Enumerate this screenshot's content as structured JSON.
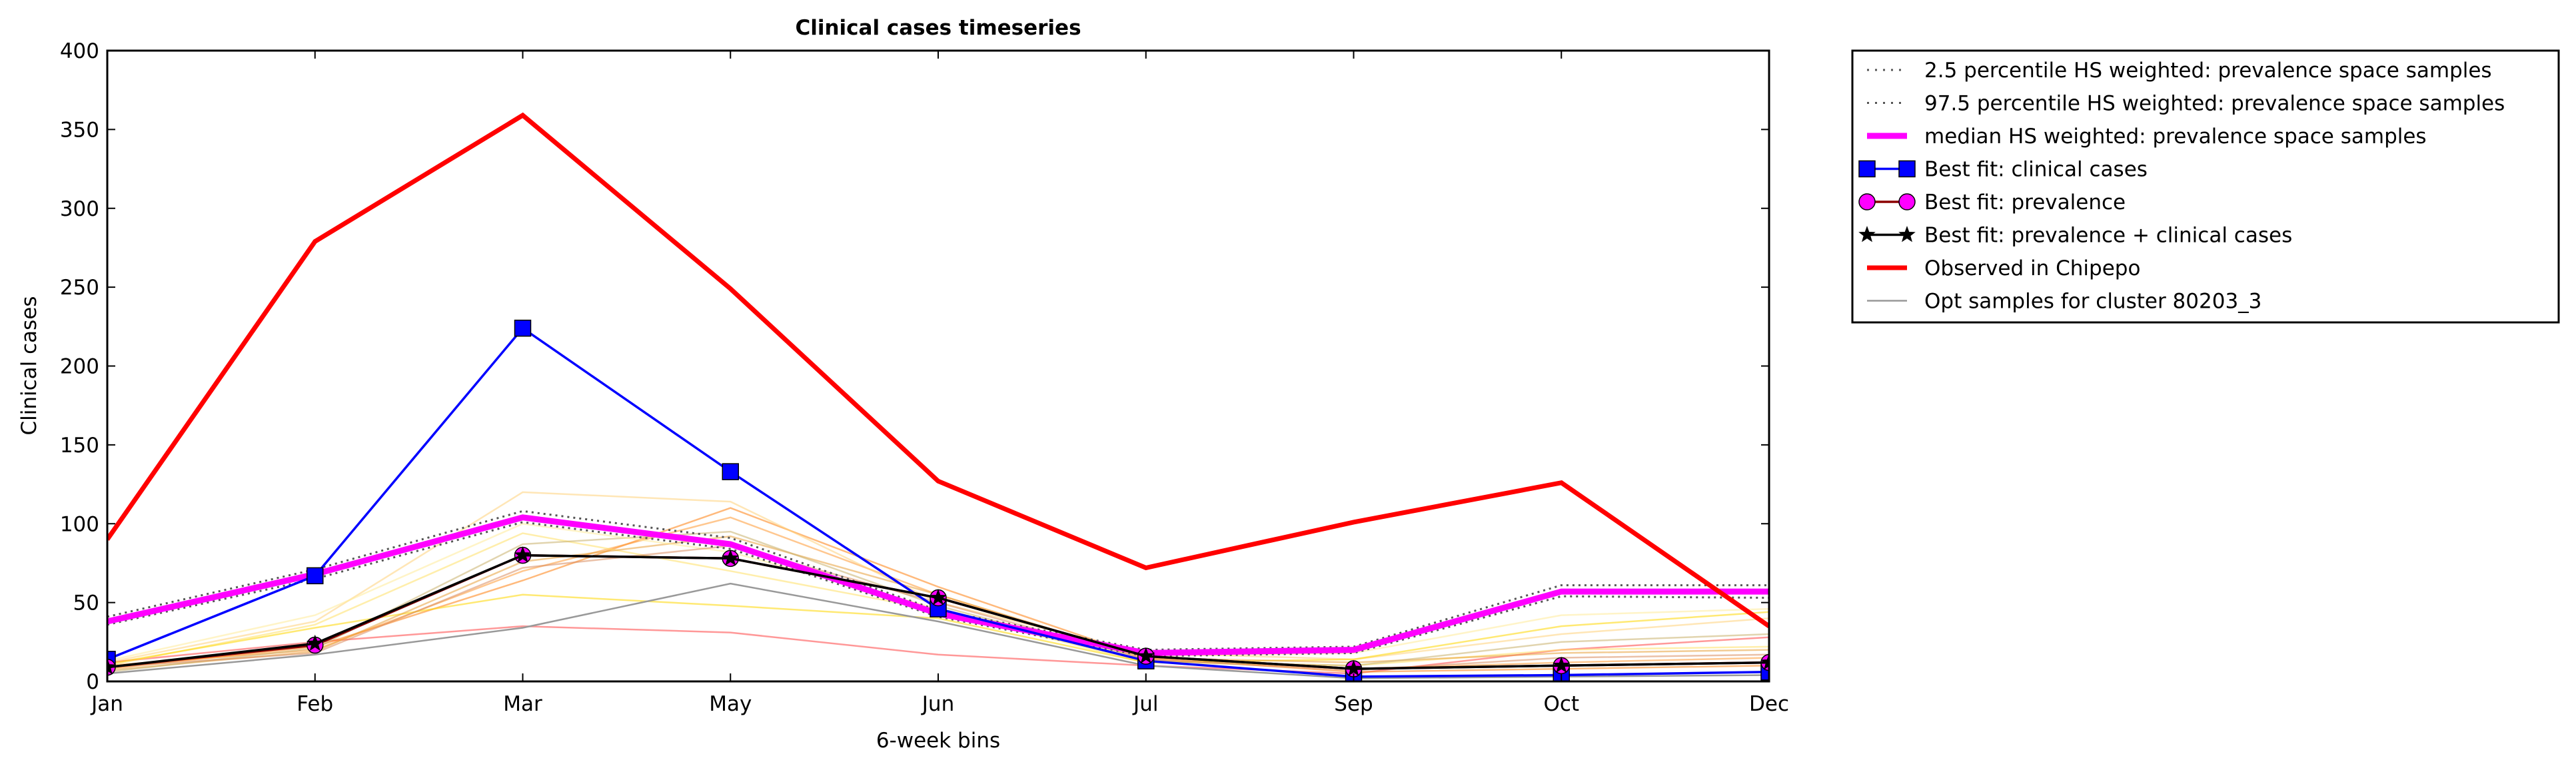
{
  "chart_data": {
    "type": "line",
    "title": "Clinical cases timeseries",
    "xlabel": "6-week bins",
    "ylabel": "Clinical cases",
    "categories": [
      "Jan",
      "Feb",
      "Mar",
      "May",
      "Jun",
      "Jul",
      "Sep",
      "Oct",
      "Dec"
    ],
    "ylim": [
      0,
      400
    ],
    "yticks": [
      0,
      50,
      100,
      150,
      200,
      250,
      300,
      350,
      400
    ],
    "grid": false,
    "legend_position": "outside-right",
    "series": [
      {
        "name": "2.5 percentile HS weighted: prevalence space samples",
        "style": "dotted",
        "color": "#555555",
        "values": [
          36,
          65,
          101,
          84,
          41,
          16,
          18,
          54,
          53
        ]
      },
      {
        "name": "97.5 percentile HS weighted: prevalence space samples",
        "style": "dotted",
        "color": "#555555",
        "values": [
          41,
          71,
          108,
          91,
          45,
          20,
          22,
          61,
          61
        ]
      },
      {
        "name": "median HS weighted: prevalence space samples",
        "style": "thick",
        "color": "#ff00ff",
        "values": [
          38,
          68,
          104,
          87,
          43,
          18,
          20,
          57,
          57
        ]
      },
      {
        "name": "Best fit: clinical cases",
        "marker": "square",
        "color": "#0000ff",
        "values": [
          14,
          67,
          224,
          133,
          46,
          13,
          3,
          4,
          6
        ]
      },
      {
        "name": "Best fit: prevalence",
        "marker": "circle",
        "color": "#ff00ff",
        "values": [
          9,
          23,
          80,
          78,
          53,
          16,
          8,
          10,
          12
        ]
      },
      {
        "name": "Best fit: prevalence + clinical cases",
        "marker": "star",
        "color": "#000000",
        "values": [
          9,
          24,
          80,
          78,
          53,
          16,
          8,
          10,
          12
        ]
      },
      {
        "name": "Observed in Chipepo",
        "style": "thick",
        "color": "#ff0000",
        "values": [
          90,
          279,
          359,
          249,
          127,
          72,
          101,
          126,
          35
        ]
      },
      {
        "name": "Opt samples for cluster 80203_3",
        "style": "thin",
        "color": "#999999",
        "values": [
          5,
          17,
          34,
          62,
          38,
          10,
          2,
          3,
          4
        ]
      }
    ],
    "cluster_samples": [
      {
        "color": "#ff4444",
        "values": [
          12,
          25,
          35,
          31,
          17,
          10,
          5,
          20,
          28
        ]
      },
      {
        "color": "#ff7f0e",
        "values": [
          8,
          22,
          64,
          110,
          60,
          15,
          6,
          8,
          10
        ]
      },
      {
        "color": "#ff9933",
        "values": [
          10,
          20,
          70,
          104,
          55,
          14,
          8,
          12,
          15
        ]
      },
      {
        "color": "#ffd27a",
        "values": [
          12,
          38,
          120,
          114,
          50,
          18,
          14,
          30,
          40
        ]
      },
      {
        "color": "#ffe066",
        "values": [
          10,
          36,
          94,
          70,
          45,
          12,
          10,
          20,
          22
        ]
      },
      {
        "color": "#ffd700",
        "values": [
          11,
          34,
          55,
          48,
          40,
          12,
          14,
          35,
          44
        ]
      },
      {
        "color": "#e8a03a",
        "values": [
          7,
          19,
          76,
          92,
          55,
          15,
          12,
          18,
          20
        ]
      },
      {
        "color": "#c9b06b",
        "values": [
          6,
          21,
          87,
          95,
          48,
          13,
          10,
          25,
          30
        ]
      },
      {
        "color": "#ffeb99",
        "values": [
          13,
          42,
          100,
          82,
          46,
          16,
          18,
          42,
          46
        ]
      },
      {
        "color": "#d98c5f",
        "values": [
          9,
          18,
          72,
          86,
          50,
          14,
          7,
          15,
          17
        ]
      }
    ]
  }
}
